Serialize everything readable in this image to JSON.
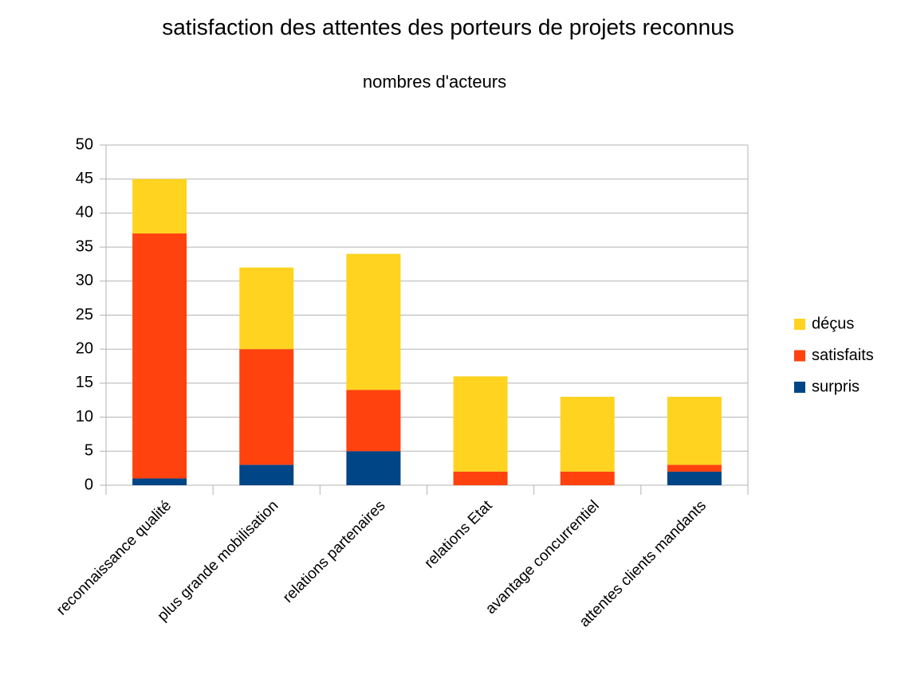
{
  "chart_data": {
    "type": "bar",
    "stacked": true,
    "title": "satisfaction des attentes des porteurs de projets reconnus",
    "subtitle": "nombres d'acteurs",
    "categories": [
      "reconnaissance qualité",
      "plus grande mobilisation",
      "relations partenaires",
      "relations Etat",
      "avantage concurrentiel",
      "attentes clients mandants"
    ],
    "series": [
      {
        "name": "surpris",
        "color": "#004586",
        "values": [
          1,
          3,
          5,
          0,
          0,
          2
        ]
      },
      {
        "name": "satisfaits",
        "color": "#ff420e",
        "values": [
          36,
          17,
          9,
          2,
          2,
          1
        ]
      },
      {
        "name": "déçus",
        "color": "#ffd320",
        "values": [
          8,
          12,
          20,
          14,
          11,
          10
        ]
      }
    ],
    "ylim": [
      0,
      50
    ],
    "yticks": [
      0,
      5,
      10,
      15,
      20,
      25,
      30,
      35,
      40,
      45,
      50
    ],
    "grid": true,
    "legend": "right"
  }
}
